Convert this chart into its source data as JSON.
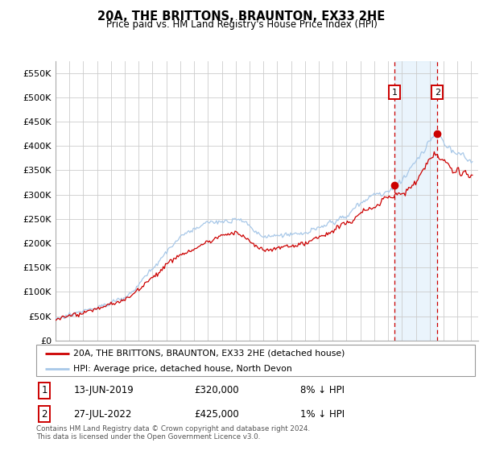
{
  "title": "20A, THE BRITTONS, BRAUNTON, EX33 2HE",
  "subtitle": "Price paid vs. HM Land Registry's House Price Index (HPI)",
  "ylabel_ticks": [
    "£0",
    "£50K",
    "£100K",
    "£150K",
    "£200K",
    "£250K",
    "£300K",
    "£350K",
    "£400K",
    "£450K",
    "£500K",
    "£550K"
  ],
  "ytick_values": [
    0,
    50000,
    100000,
    150000,
    200000,
    250000,
    300000,
    350000,
    400000,
    450000,
    500000,
    550000
  ],
  "ylim": [
    0,
    575000
  ],
  "xlim_left": 1995,
  "xlim_right": 2025.5,
  "hpi_color": "#a8c8e8",
  "price_color": "#cc0000",
  "vline1_color": "#cc0000",
  "vline2_color": "#cc0000",
  "sale1_x": 2019.45,
  "sale1_price": 320000,
  "sale2_x": 2022.55,
  "sale2_price": 425000,
  "shade_color": "#dceefa",
  "shade_alpha": 0.6,
  "legend_line1": "20A, THE BRITTONS, BRAUNTON, EX33 2HE (detached house)",
  "legend_line2": "HPI: Average price, detached house, North Devon",
  "sale1_date": "13-JUN-2019",
  "sale1_label": "8% ↓ HPI",
  "sale2_date": "27-JUL-2022",
  "sale2_label": "1% ↓ HPI",
  "footnote": "Contains HM Land Registry data © Crown copyright and database right 2024.\nThis data is licensed under the Open Government Licence v3.0.",
  "background_color": "#ffffff",
  "plot_bg_color": "#ffffff",
  "grid_color": "#cccccc"
}
